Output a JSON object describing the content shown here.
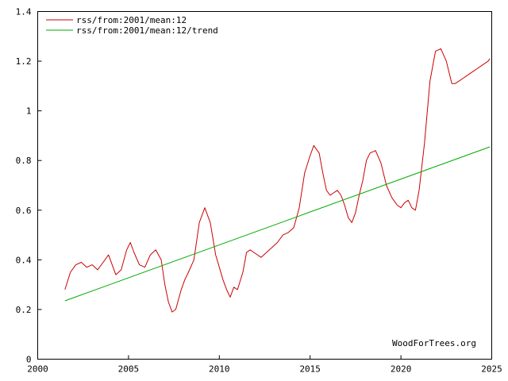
{
  "chart_data": {
    "type": "line",
    "title": "",
    "xlabel": "",
    "ylabel": "",
    "xlim": [
      2000,
      2025
    ],
    "ylim": [
      0,
      1.4
    ],
    "grid": false,
    "legend_position": "top-left",
    "x_ticks": [
      2000,
      2005,
      2010,
      2015,
      2020,
      2025
    ],
    "x_tick_labels": [
      "2000",
      "2005",
      "2010",
      "2015",
      "2020",
      "2025"
    ],
    "y_ticks": [
      0,
      0.2,
      0.4,
      0.6,
      0.8,
      1,
      1.2,
      1.4
    ],
    "y_tick_labels": [
      "0",
      "0.2",
      "0.4",
      "0.6",
      "0.8",
      "1",
      "1.2",
      "1.4"
    ],
    "watermark": "WoodForTrees.org",
    "series": [
      {
        "name": "rss/from:2001/mean:12",
        "color": "#cc0000",
        "x": [
          2001.5,
          2001.8,
          2002.1,
          2002.4,
          2002.7,
          2003.0,
          2003.3,
          2003.6,
          2003.9,
          2004.1,
          2004.3,
          2004.6,
          2004.9,
          2005.1,
          2005.3,
          2005.6,
          2005.9,
          2006.2,
          2006.5,
          2006.8,
          2007.0,
          2007.2,
          2007.4,
          2007.6,
          2007.9,
          2008.1,
          2008.3,
          2008.6,
          2008.9,
          2009.2,
          2009.5,
          2009.8,
          2010.0,
          2010.2,
          2010.4,
          2010.6,
          2010.8,
          2011.0,
          2011.3,
          2011.5,
          2011.7,
          2011.9,
          2012.1,
          2012.3,
          2012.6,
          2012.9,
          2013.2,
          2013.5,
          2013.8,
          2014.1,
          2014.4,
          2014.7,
          2015.0,
          2015.2,
          2015.5,
          2015.7,
          2015.9,
          2016.1,
          2016.3,
          2016.5,
          2016.7,
          2016.9,
          2017.1,
          2017.3,
          2017.5,
          2017.7,
          2017.9,
          2018.1,
          2018.3,
          2018.6,
          2018.9,
          2019.2,
          2019.5,
          2019.8,
          2020.0,
          2020.2,
          2020.4,
          2020.6,
          2020.8,
          2021.0,
          2021.3,
          2021.6,
          2021.9,
          2022.2,
          2022.5,
          2022.8,
          2023.0,
          2023.2,
          2023.4,
          2023.6,
          2023.8,
          2024.0,
          2024.2,
          2024.4,
          2024.6,
          2024.8,
          2024.9
        ],
        "y": [
          0.28,
          0.35,
          0.38,
          0.39,
          0.37,
          0.38,
          0.36,
          0.39,
          0.42,
          0.38,
          0.34,
          0.36,
          0.44,
          0.47,
          0.43,
          0.38,
          0.37,
          0.42,
          0.44,
          0.4,
          0.3,
          0.23,
          0.19,
          0.2,
          0.28,
          0.32,
          0.35,
          0.4,
          0.55,
          0.61,
          0.55,
          0.42,
          0.37,
          0.32,
          0.28,
          0.25,
          0.29,
          0.28,
          0.35,
          0.43,
          0.44,
          0.43,
          0.42,
          0.41,
          0.43,
          0.45,
          0.47,
          0.5,
          0.51,
          0.53,
          0.61,
          0.75,
          0.82,
          0.86,
          0.83,
          0.75,
          0.68,
          0.66,
          0.67,
          0.68,
          0.66,
          0.62,
          0.57,
          0.55,
          0.59,
          0.66,
          0.72,
          0.8,
          0.83,
          0.84,
          0.79,
          0.7,
          0.65,
          0.62,
          0.61,
          0.63,
          0.64,
          0.61,
          0.6,
          0.68,
          0.87,
          1.12,
          1.24,
          1.25,
          1.2,
          1.11,
          1.11,
          1.12,
          1.13,
          1.14,
          1.15,
          1.16,
          1.17,
          1.18,
          1.19,
          1.2,
          1.21
        ]
      },
      {
        "name": "rss/from:2001/mean:12/trend",
        "color": "#00aa00",
        "x": [
          2001.5,
          2024.9
        ],
        "y": [
          0.235,
          0.855
        ]
      }
    ]
  }
}
